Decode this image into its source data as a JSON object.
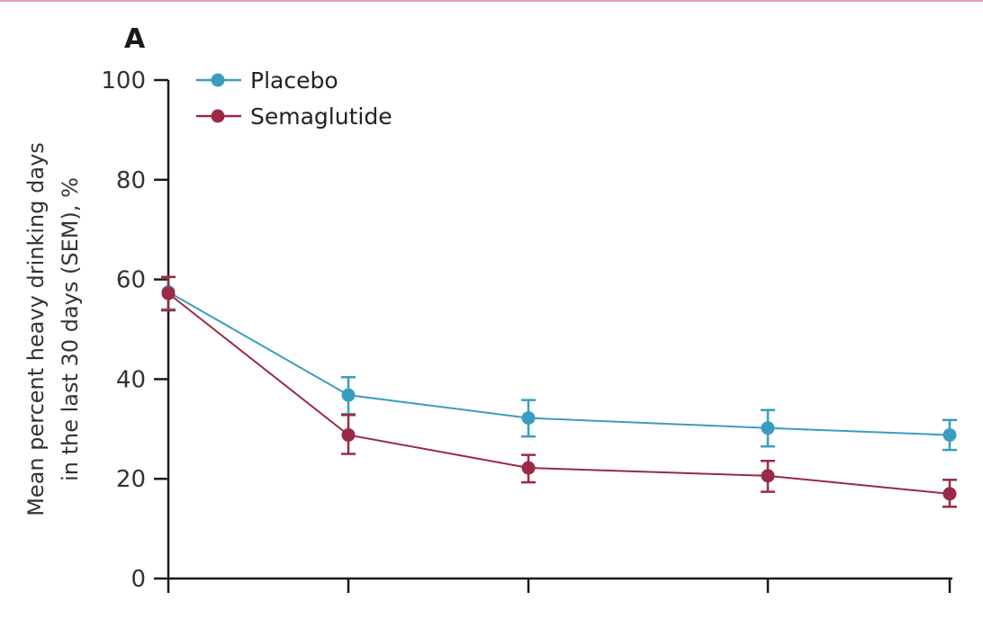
{
  "panel_label": "A",
  "colors": {
    "placebo": "#3a9dbf",
    "semaglutide": "#9a2a45",
    "axis": "#1a1a1a",
    "top_rule": "#e8a0a8"
  },
  "chart_data": {
    "type": "line",
    "title": "",
    "ylabel_lines": [
      "Mean percent heavy drinking days",
      "in the last 30 days (SEM), %"
    ],
    "xlabel": "",
    "ylim": [
      0,
      100
    ],
    "yticks": [
      0,
      20,
      40,
      60,
      80,
      100
    ],
    "x": [
      0,
      1,
      2,
      3,
      4
    ],
    "legend_position": "top-left",
    "grid": false,
    "error_bars": "SEM",
    "series": [
      {
        "name": "Placebo",
        "color": "#3a9dbf",
        "values": [
          57.5,
          36.8,
          32.2,
          30.2,
          28.8
        ],
        "err_low": [
          54.0,
          33.0,
          28.5,
          26.5,
          25.8
        ],
        "err_high": [
          60.5,
          40.4,
          35.8,
          33.8,
          31.8
        ]
      },
      {
        "name": "Semaglutide",
        "color": "#9a2a45",
        "values": [
          57.2,
          28.8,
          22.2,
          20.6,
          17.0
        ],
        "err_low": [
          53.8,
          25.0,
          19.3,
          17.4,
          14.4
        ],
        "err_high": [
          60.5,
          32.8,
          24.8,
          23.6,
          19.8
        ]
      }
    ]
  }
}
